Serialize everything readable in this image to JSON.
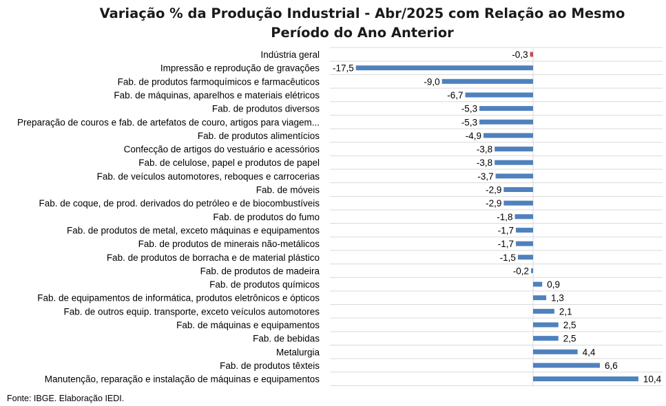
{
  "chart_data": {
    "type": "bar",
    "orientation": "horizontal",
    "title_line1": "Variação % da Produção Industrial - Abr/2025 com Relação ao Mesmo",
    "title_line2": "Período do Ano Anterior",
    "categories": [
      "Indústria geral",
      "Impressão e reprodução de gravações",
      "Fab. de produtos farmoquímicos e farmacêuticos",
      "Fab. de máquinas, aparelhos e materiais elétricos",
      "Fab. de produtos diversos",
      "Preparação de couros e fab. de artefatos de couro, artigos para viagem...",
      "Fab. de produtos alimentícios",
      "Confecção de artigos do vestuário e acessórios",
      "Fab. de celulose, papel e produtos de papel",
      "Fab. de veículos automotores, reboques e carrocerias",
      "Fab. de móveis",
      "Fab. de coque, de prod. derivados do petróleo e de biocombustíveis",
      "Fab. de produtos do fumo",
      "Fab. de produtos de metal, exceto máquinas e equipamentos",
      "Fab. de produtos de minerais não-metálicos",
      "Fab. de produtos de borracha e de material plástico",
      "Fab. de produtos de madeira",
      "Fab. de produtos químicos",
      "Fab. de equipamentos de informática, produtos eletrônicos e ópticos",
      "Fab. de outros equip. transporte, exceto veículos automotores",
      "Fab. de máquinas e equipamentos",
      "Fab. de bebidas",
      "Metalurgia",
      "Fab. de produtos têxteis",
      "Manutenção, reparação e instalação de máquinas e equipamentos"
    ],
    "values": [
      -0.3,
      -17.5,
      -9.0,
      -6.7,
      -5.3,
      -5.3,
      -4.9,
      -3.8,
      -3.8,
      -3.7,
      -2.9,
      -2.9,
      -1.8,
      -1.7,
      -1.7,
      -1.5,
      -0.2,
      0.9,
      1.3,
      2.1,
      2.5,
      2.5,
      4.4,
      6.6,
      10.4
    ],
    "value_labels": [
      "-0,3",
      "-17,5",
      "-9,0",
      "-6,7",
      "-5,3",
      "-5,3",
      "-4,9",
      "-3,8",
      "-3,8",
      "-3,7",
      "-2,9",
      "-2,9",
      "-1,8",
      "-1,7",
      "-1,7",
      "-1,5",
      "-0,2",
      "0,9",
      "1,3",
      "2,1",
      "2,5",
      "2,5",
      "4,4",
      "6,6",
      "10,4"
    ],
    "highlight_index": 0,
    "bar_color": "#4f81bd",
    "highlight_color": "#c0504d",
    "gridline_color": "#d9d9d9",
    "grid": "horizontal",
    "legend": "none"
  },
  "source": "Fonte: IBGE. Elaboração IEDI."
}
